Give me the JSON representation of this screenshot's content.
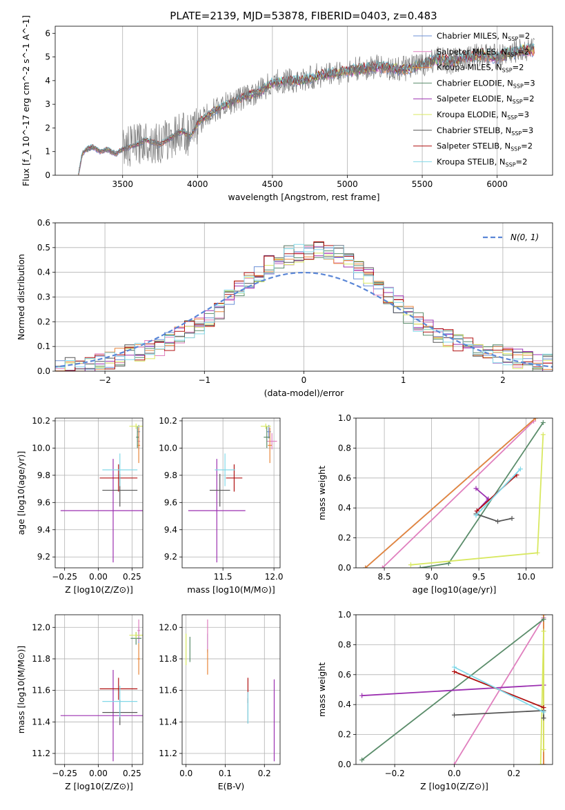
{
  "title": "PLATE=2139, MJD=53878, FIBERID=0403, z=0.483",
  "colors": {
    "Chabrier MILES": "#6b8fd6",
    "Salpeter MILES": "#e07fbe",
    "Kroupa MILES": "#e8863a",
    "Chabrier ELODIE": "#5a8c6a",
    "Salpeter ELODIE": "#9b2fb0",
    "Kroupa ELODIE": "#d8e860",
    "Chabrier STELIB": "#555555",
    "Salpeter STELIB": "#b01010",
    "Kroupa STELIB": "#80d8e8"
  },
  "chart_data": [
    {
      "id": "spectrum",
      "type": "line",
      "xlabel": "wavelength [Angstrom, rest frame]",
      "ylabel": "Flux [f_λ 10^-17 erg cm^-2 s^-1 A^-1]",
      "xlim": [
        3050,
        6370
      ],
      "ylim": [
        0,
        6.3
      ],
      "xticks": [
        3500,
        4000,
        4500,
        5000,
        5500,
        6000
      ],
      "yticks": [
        0,
        1,
        2,
        3,
        4,
        5,
        6
      ],
      "legend": [
        {
          "name": "Chabrier MILES",
          "text": "Chabrier MILES, N",
          "sub": "SSP",
          "tail": "=2"
        },
        {
          "name": "Salpeter MILES",
          "text": "Salpeter MILES, N",
          "sub": "SSP",
          "tail": "=2"
        },
        {
          "name": "Kroupa MILES",
          "text": "Kroupa MILES, N",
          "sub": "SSP",
          "tail": "=2"
        },
        {
          "name": "Chabrier ELODIE",
          "text": "Chabrier ELODIE, N",
          "sub": "SSP",
          "tail": "=3"
        },
        {
          "name": "Salpeter ELODIE",
          "text": "Salpeter ELODIE, N",
          "sub": "SSP",
          "tail": "=2"
        },
        {
          "name": "Kroupa ELODIE",
          "text": "Kroupa ELODIE, N",
          "sub": "SSP",
          "tail": "=3"
        },
        {
          "name": "Chabrier STELIB",
          "text": "Chabrier STELIB, N",
          "sub": "SSP",
          "tail": "=3"
        },
        {
          "name": "Salpeter STELIB",
          "text": "Salpeter STELIB, N",
          "sub": "SSP",
          "tail": "=2"
        },
        {
          "name": "Kroupa STELIB",
          "text": "Kroupa STELIB, N",
          "sub": "SSP",
          "tail": "=2"
        }
      ],
      "data_wavelength": [
        3205,
        3230,
        3260,
        3300,
        3350,
        3400,
        3450,
        3500,
        3550,
        3600,
        3650,
        3700,
        3750,
        3800,
        3850,
        3900,
        3950,
        4000,
        4100,
        4200,
        4300,
        4400,
        4500,
        4600,
        4700,
        4800,
        4900,
        5000,
        5100,
        5200,
        5300,
        5400,
        5500,
        5600,
        5700,
        5800,
        5900,
        6000,
        6100,
        6200,
        6250
      ],
      "data_flux": [
        0,
        0.9,
        1.1,
        1.2,
        1.0,
        1.1,
        0.9,
        1.1,
        1.2,
        1.3,
        1.5,
        1.4,
        1.3,
        1.5,
        1.7,
        1.9,
        1.6,
        2.2,
        2.7,
        3.0,
        3.3,
        3.5,
        3.9,
        4.0,
        4.0,
        4.2,
        4.3,
        4.4,
        4.5,
        4.6,
        4.5,
        4.5,
        4.7,
        4.9,
        4.8,
        5.0,
        5.1,
        5.0,
        5.2,
        5.3,
        5.3
      ]
    },
    {
      "id": "residual_hist",
      "type": "histogram",
      "xlabel": "(data-model)/error",
      "ylabel": "Normed distribution",
      "xlim": [
        -2.5,
        2.5
      ],
      "ylim": [
        0,
        0.6
      ],
      "xticks": [
        -2,
        -1,
        0,
        1,
        2
      ],
      "yticks": [
        0.0,
        0.1,
        0.2,
        0.3,
        0.4,
        0.5,
        0.6
      ],
      "legend": "N(0,1)",
      "bin_edges": [
        -2.6,
        -2.5,
        -2.4,
        -2.3,
        -2.2,
        -2.1,
        -2.0,
        -1.9,
        -1.8,
        -1.7,
        -1.6,
        -1.5,
        -1.4,
        -1.3,
        -1.2,
        -1.1,
        -1.0,
        -0.9,
        -0.8,
        -0.7,
        -0.6,
        -0.5,
        -0.4,
        -0.3,
        -0.2,
        -0.1,
        0.0,
        0.1,
        0.2,
        0.3,
        0.4,
        0.5,
        0.6,
        0.7,
        0.8,
        0.9,
        1.0,
        1.1,
        1.2,
        1.3,
        1.4,
        1.5,
        1.6,
        1.7,
        1.8,
        1.9,
        2.0,
        2.1,
        2.2,
        2.3,
        2.4,
        2.5,
        2.6
      ],
      "hist_values": [
        0.01,
        0.01,
        0.02,
        0.02,
        0.03,
        0.04,
        0.04,
        0.06,
        0.07,
        0.08,
        0.09,
        0.1,
        0.12,
        0.14,
        0.17,
        0.19,
        0.22,
        0.25,
        0.29,
        0.33,
        0.37,
        0.4,
        0.43,
        0.45,
        0.47,
        0.48,
        0.49,
        0.49,
        0.48,
        0.47,
        0.44,
        0.41,
        0.38,
        0.34,
        0.31,
        0.27,
        0.23,
        0.2,
        0.17,
        0.15,
        0.13,
        0.12,
        0.1,
        0.09,
        0.08,
        0.07,
        0.06,
        0.05,
        0.04,
        0.03,
        0.03,
        0.02
      ]
    },
    {
      "id": "z_age",
      "type": "scatter",
      "xlabel": "Z [log10(Z/Z⊙)]",
      "ylabel": "age [log10(age/yr)]",
      "xlim": [
        -0.32,
        0.33
      ],
      "ylim": [
        9.12,
        10.22
      ],
      "xticks": [
        -0.25,
        0.0,
        0.25
      ],
      "yticks": [
        9.2,
        9.4,
        9.6,
        9.8,
        10.0,
        10.2
      ],
      "points": [
        {
          "s": "Chabrier MILES",
          "x": 0.3,
          "y": 10.12,
          "xe": 0.01,
          "ye": 0.05
        },
        {
          "s": "Salpeter MILES",
          "x": 0.3,
          "y": 10.05,
          "xe": 0.01,
          "ye": 0.06
        },
        {
          "s": "Kroupa MILES",
          "x": 0.3,
          "y": 10.02,
          "xe": 0.01,
          "ye": 0.13
        },
        {
          "s": "Chabrier ELODIE",
          "x": 0.29,
          "y": 10.08,
          "xe": 0.01,
          "ye": 0.08
        },
        {
          "s": "Salpeter ELODIE",
          "x": 0.11,
          "y": 9.54,
          "xe": 0.39,
          "ye": 0.38
        },
        {
          "s": "Kroupa ELODIE",
          "x": 0.28,
          "y": 10.16,
          "xe": 0.05,
          "ye": 0.02
        },
        {
          "s": "Chabrier STELIB",
          "x": 0.16,
          "y": 9.69,
          "xe": 0.13,
          "ye": 0.12
        },
        {
          "s": "Salpeter STELIB",
          "x": 0.15,
          "y": 9.78,
          "xe": 0.14,
          "ye": 0.1
        },
        {
          "s": "Kroupa STELIB",
          "x": 0.16,
          "y": 9.84,
          "xe": 0.13,
          "ye": 0.12
        }
      ]
    },
    {
      "id": "mass_age",
      "type": "scatter",
      "xlabel": "mass [log10(M/M⊙)]",
      "ylabel": "",
      "xlim": [
        11.1,
        12.06
      ],
      "ylim": [
        9.12,
        10.22
      ],
      "xticks": [
        11.5,
        12.0
      ],
      "yticks": [
        9.2,
        9.4,
        9.6,
        9.8,
        10.0,
        10.2
      ],
      "points": [
        {
          "s": "Chabrier MILES",
          "x": 11.95,
          "y": 10.12,
          "xe": 0.02,
          "ye": 0.05
        },
        {
          "s": "Salpeter MILES",
          "x": 11.98,
          "y": 10.05,
          "xe": 0.05,
          "ye": 0.06
        },
        {
          "s": "Kroupa MILES",
          "x": 11.96,
          "y": 10.02,
          "xe": 0.02,
          "ye": 0.13
        },
        {
          "s": "Chabrier ELODIE",
          "x": 11.93,
          "y": 10.08,
          "xe": 0.03,
          "ye": 0.08
        },
        {
          "s": "Salpeter ELODIE",
          "x": 11.44,
          "y": 9.54,
          "xe": 0.28,
          "ye": 0.38
        },
        {
          "s": "Kroupa ELODIE",
          "x": 11.92,
          "y": 10.16,
          "xe": 0.05,
          "ye": 0.02
        },
        {
          "s": "Chabrier STELIB",
          "x": 11.47,
          "y": 9.69,
          "xe": 0.1,
          "ye": 0.12
        },
        {
          "s": "Salpeter STELIB",
          "x": 11.61,
          "y": 9.78,
          "xe": 0.08,
          "ye": 0.1
        },
        {
          "s": "Kroupa STELIB",
          "x": 11.52,
          "y": 9.84,
          "xe": 0.1,
          "ye": 0.12
        }
      ]
    },
    {
      "id": "age_weight",
      "type": "line",
      "xlabel": "age [log10(age/yr)]",
      "ylabel": "mass weight",
      "xlim": [
        8.2,
        10.28
      ],
      "ylim": [
        0,
        1
      ],
      "xticks": [
        8.5,
        9.0,
        9.5,
        10.0
      ],
      "yticks": [
        0.0,
        0.2,
        0.4,
        0.6,
        0.8,
        1.0
      ],
      "series": [
        {
          "name": "Chabrier MILES",
          "x": [
            8.3,
            10.1
          ],
          "y": [
            0.0,
            1.0
          ]
        },
        {
          "name": "Salpeter MILES",
          "x": [
            8.48,
            10.08
          ],
          "y": [
            0.0,
            0.98
          ]
        },
        {
          "name": "Kroupa MILES",
          "x": [
            8.3,
            10.1
          ],
          "y": [
            0.0,
            1.0
          ]
        },
        {
          "name": "Chabrier ELODIE",
          "x": [
            8.88,
            9.18,
            10.18
          ],
          "y": [
            0.0,
            0.03,
            0.97
          ]
        },
        {
          "name": "Salpeter ELODIE",
          "x": [
            9.47,
            9.6,
            9.48
          ],
          "y": [
            0.53,
            0.46,
            0.38
          ]
        },
        {
          "name": "Kroupa ELODIE",
          "x": [
            8.78,
            10.12,
            10.18
          ],
          "y": [
            0.02,
            0.1,
            0.89
          ]
        },
        {
          "name": "Chabrier STELIB",
          "x": [
            9.47,
            9.7,
            9.85
          ],
          "y": [
            0.36,
            0.31,
            0.33
          ]
        },
        {
          "name": "Salpeter STELIB",
          "x": [
            9.48,
            9.9
          ],
          "y": [
            0.38,
            0.62
          ]
        },
        {
          "name": "Kroupa STELIB",
          "x": [
            9.47,
            9.94
          ],
          "y": [
            0.35,
            0.66
          ]
        }
      ]
    },
    {
      "id": "z_mass",
      "type": "scatter",
      "xlabel": "Z [log10(Z/Z⊙)]",
      "ylabel": "mass [log10(M/M⊙)]",
      "xlim": [
        -0.32,
        0.33
      ],
      "ylim": [
        11.13,
        12.08
      ],
      "xticks": [
        -0.25,
        0.0,
        0.25
      ],
      "yticks": [
        11.2,
        11.4,
        11.6,
        11.8,
        12.0
      ],
      "points": [
        {
          "s": "Chabrier MILES",
          "x": 0.3,
          "y": 11.95,
          "xe": 0.01,
          "ye": 0.05
        },
        {
          "s": "Salpeter MILES",
          "x": 0.3,
          "y": 11.98,
          "xe": 0.01,
          "ye": 0.07
        },
        {
          "s": "Kroupa MILES",
          "x": 0.3,
          "y": 11.8,
          "xe": 0.01,
          "ye": 0.1
        },
        {
          "s": "Chabrier ELODIE",
          "x": 0.28,
          "y": 11.93,
          "xe": 0.04,
          "ye": 0.04
        },
        {
          "s": "Salpeter ELODIE",
          "x": 0.11,
          "y": 11.44,
          "xe": 0.39,
          "ye": 0.29
        },
        {
          "s": "Kroupa ELODIE",
          "x": 0.28,
          "y": 11.95,
          "xe": 0.05,
          "ye": 0.02
        },
        {
          "s": "Chabrier STELIB",
          "x": 0.16,
          "y": 11.46,
          "xe": 0.13,
          "ye": 0.08
        },
        {
          "s": "Salpeter STELIB",
          "x": 0.15,
          "y": 11.61,
          "xe": 0.14,
          "ye": 0.07
        },
        {
          "s": "Kroupa STELIB",
          "x": 0.16,
          "y": 11.53,
          "xe": 0.13,
          "ye": 0.1
        }
      ]
    },
    {
      "id": "ebv_mass",
      "type": "scatter",
      "xlabel": "E(B-V)",
      "ylabel": "",
      "xlim": [
        -0.01,
        0.24
      ],
      "ylim": [
        11.13,
        12.08
      ],
      "xticks": [
        0.0,
        0.1,
        0.2
      ],
      "yticks": [
        11.2,
        11.4,
        11.6,
        11.8,
        12.0
      ],
      "points": [
        {
          "s": "Chabrier MILES",
          "x": 0.055,
          "y": 11.9,
          "xe": 0.0,
          "ye": 0.06
        },
        {
          "s": "Salpeter MILES",
          "x": 0.055,
          "y": 11.95,
          "xe": 0.0,
          "ye": 0.1
        },
        {
          "s": "Kroupa MILES",
          "x": 0.055,
          "y": 11.78,
          "xe": 0.0,
          "ye": 0.08
        },
        {
          "s": "Chabrier ELODIE",
          "x": 0.01,
          "y": 11.86,
          "xe": 0.0,
          "ye": 0.08
        },
        {
          "s": "Salpeter ELODIE",
          "x": 0.225,
          "y": 11.41,
          "xe": 0.0,
          "ye": 0.26
        },
        {
          "s": "Kroupa ELODIE",
          "x": 0.0,
          "y": 11.86,
          "xe": 0.0,
          "ye": 0.1
        },
        {
          "s": "Chabrier STELIB",
          "x": 0.158,
          "y": 11.47,
          "xe": 0.0,
          "ye": 0.08
        },
        {
          "s": "Salpeter STELIB",
          "x": 0.158,
          "y": 11.6,
          "xe": 0.0,
          "ye": 0.08
        },
        {
          "s": "Kroupa STELIB",
          "x": 0.158,
          "y": 11.49,
          "xe": 0.0,
          "ye": 0.1
        }
      ]
    },
    {
      "id": "z_weight",
      "type": "line",
      "xlabel": "Z [log10(Z/Z⊙)]",
      "ylabel": "mass weight",
      "xlim": [
        -0.33,
        0.33
      ],
      "ylim": [
        0,
        1
      ],
      "xticks": [
        -0.2,
        0.0,
        0.2
      ],
      "yticks": [
        0.0,
        0.2,
        0.4,
        0.6,
        0.8,
        1.0
      ],
      "series": [
        {
          "name": "Chabrier MILES",
          "x": [
            0.3,
            0.3
          ],
          "y": [
            0.0,
            1.0
          ]
        },
        {
          "name": "Salpeter MILES",
          "x": [
            0.0,
            0.3
          ],
          "y": [
            0.0,
            0.98
          ]
        },
        {
          "name": "Kroupa MILES",
          "x": [
            0.3,
            0.3
          ],
          "y": [
            0.0,
            1.0
          ]
        },
        {
          "name": "Chabrier ELODIE",
          "x": [
            -0.31,
            0.3
          ],
          "y": [
            0.03,
            0.97
          ]
        },
        {
          "name": "Salpeter ELODIE",
          "x": [
            -0.31,
            0.3
          ],
          "y": [
            0.46,
            0.53
          ]
        },
        {
          "name": "Kroupa ELODIE",
          "x": [
            0.29,
            0.3,
            0.3
          ],
          "y": [
            0.0,
            0.89,
            0.1
          ]
        },
        {
          "name": "Chabrier STELIB",
          "x": [
            0.0,
            0.3,
            0.3
          ],
          "y": [
            0.33,
            0.36,
            0.31
          ]
        },
        {
          "name": "Salpeter STELIB",
          "x": [
            0.0,
            0.3
          ],
          "y": [
            0.62,
            0.38
          ]
        },
        {
          "name": "Kroupa STELIB",
          "x": [
            0.0,
            0.3
          ],
          "y": [
            0.65,
            0.35
          ]
        }
      ]
    }
  ]
}
